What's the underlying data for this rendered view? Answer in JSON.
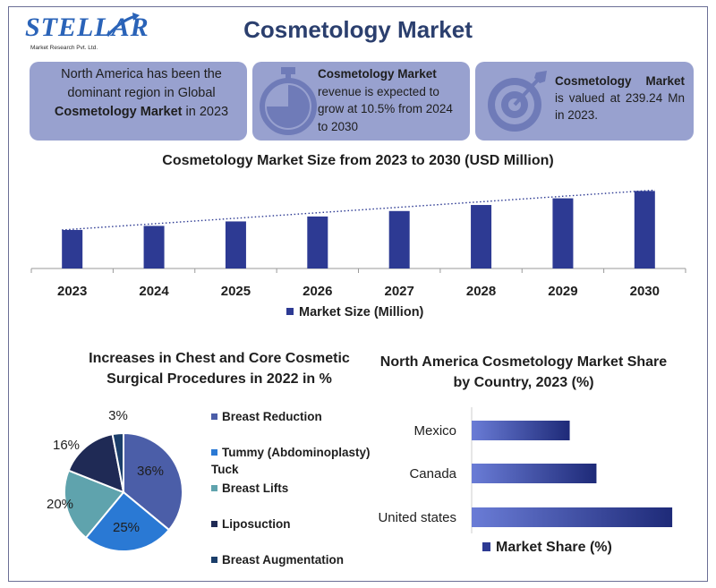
{
  "logo": {
    "name": "STELLAR",
    "tagline": "Market Research Pvt. Ltd."
  },
  "title": "Cosmetology Market",
  "cards": {
    "card1": {
      "pre": "North America has been the dominant region in Global ",
      "bold": "Cosmetology Market",
      "post": " in 2023",
      "icon": "none"
    },
    "card2": {
      "bold": "Cosmetology Market",
      "post": " revenue is expected to grow at 10.5% from 2024 to 2030",
      "icon": "stopwatch-icon"
    },
    "card3": {
      "bold": "Cosmetology Market",
      "post": " is valued at 239.24 Mn in 2023.",
      "icon": "target-icon"
    }
  },
  "colors": {
    "accent": "#2d3a93",
    "card_bg": "#98a1cf",
    "title": "#2b3f6e"
  },
  "chart_data": [
    {
      "type": "bar",
      "title": "Cosmetology Market Size from 2023 to 2030 (USD Million)",
      "categories": [
        "2023",
        "2024",
        "2025",
        "2026",
        "2027",
        "2028",
        "2029",
        "2030"
      ],
      "values": [
        239.24,
        264.4,
        292.1,
        322.8,
        356.7,
        394.2,
        435.6,
        481.3
      ],
      "legend": "Market Size (Million)",
      "trendline": true,
      "ylim": [
        0,
        500
      ],
      "grid": false
    },
    {
      "type": "pie",
      "title": "Increases in Chest and Core Cosmetic Surgical Procedures in 2022 in %",
      "labels": [
        "Breast Reduction",
        "Tummy (Abdominoplasty) Tuck",
        "Breast Lifts",
        "Liposuction",
        "Breast Augmentation"
      ],
      "values": [
        36,
        25,
        20,
        16,
        3
      ],
      "value_labels": [
        "36%",
        "25%",
        "20%",
        "16%",
        "3%"
      ],
      "colors": [
        "#4b5ea8",
        "#2a79d4",
        "#5fa3ad",
        "#1f2a55",
        "#1b3e6a"
      ]
    },
    {
      "type": "bar",
      "orientation": "horizontal",
      "title": "North America Cosmetology Market Share by Country, 2023 (%)",
      "categories": [
        "Mexico",
        "Canada",
        "United states"
      ],
      "values": [
        22,
        28,
        45
      ],
      "legend": "Market Share (%)",
      "xlim": [
        0,
        50
      ]
    }
  ]
}
